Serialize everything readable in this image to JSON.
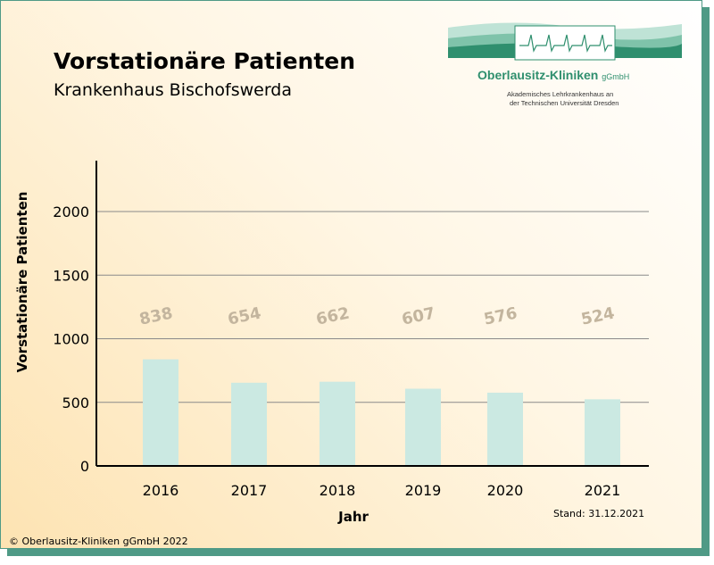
{
  "header": {
    "title": "Vorstationäre Patienten",
    "subtitle": "Krankenhaus Bischofswerda"
  },
  "logo": {
    "name": "Oberlausitz-Kliniken",
    "name_suffix": "gGmbH",
    "line1": "Akademisches Lehrkrankenhaus an",
    "line2": "der Technischen Universität Dresden"
  },
  "footer": {
    "copyright": "© Oberlausitz-Kliniken gGmbH 2022",
    "stand": "Stand: 31.12.2021"
  },
  "colors": {
    "bar": "#cbe9e2",
    "data_label": "#c3b59e",
    "accent": "#4f9a86",
    "logo_green": "#2f8f6e"
  },
  "chart_data": {
    "type": "bar",
    "categories": [
      "2016",
      "2017",
      "2018",
      "2019",
      "2020",
      "2021"
    ],
    "values": [
      838,
      654,
      662,
      607,
      576,
      524
    ],
    "data_labels": [
      "838",
      "654",
      "662",
      "607",
      "576",
      "524"
    ],
    "title": "Vorstationäre Patienten",
    "subtitle": "Krankenhaus Bischofswerda",
    "xlabel": "Jahr",
    "ylabel": "Vorstationäre Patienten",
    "ylim": [
      0,
      2400
    ],
    "yticks": [
      "0",
      "500",
      "1000",
      "1500",
      "2000"
    ],
    "ytick_values": [
      0,
      500,
      1000,
      1500,
      2000
    ],
    "grid": true,
    "legend": "none"
  }
}
